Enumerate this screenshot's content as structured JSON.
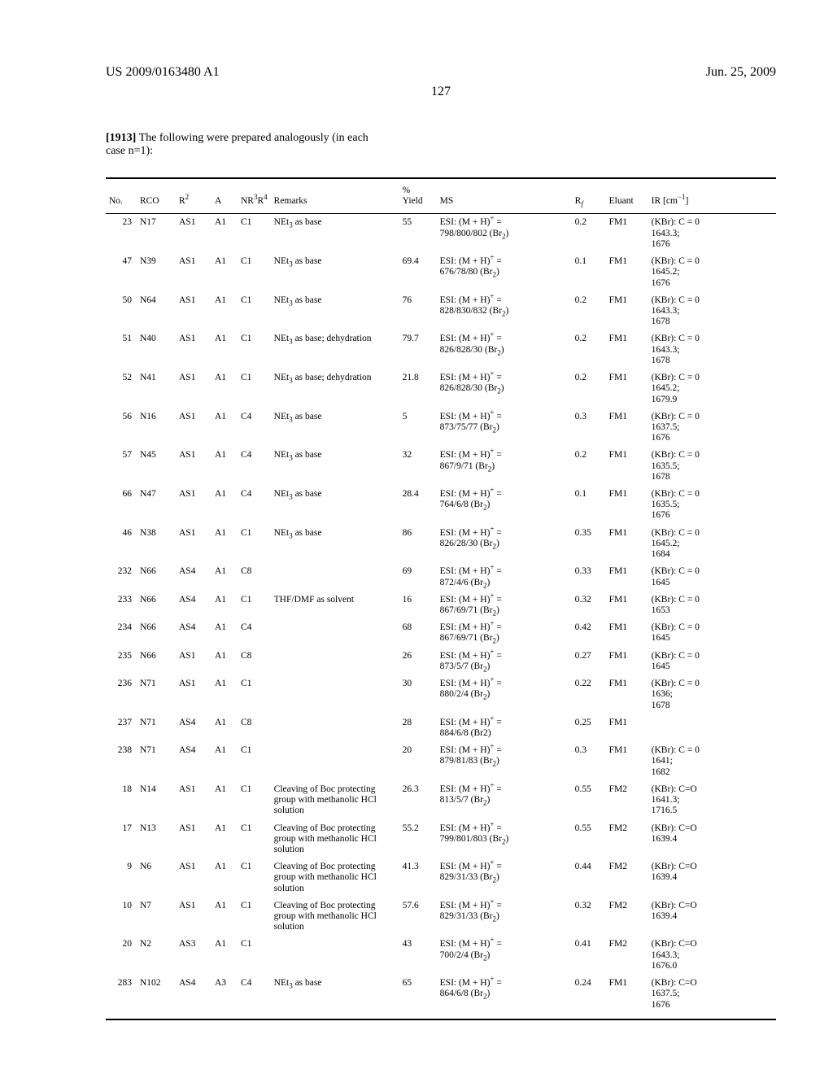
{
  "header": {
    "patent_no": "US 2009/0163480 A1",
    "date": "Jun. 25, 2009"
  },
  "page_number": "127",
  "intro": {
    "para_num": "[1913]",
    "text_a": "  The following were prepared analogously (in each",
    "text_b": "case n=1):"
  },
  "table": {
    "columns": {
      "no": "No.",
      "rco": "RCO",
      "r2": "R²",
      "a": "A",
      "nr": "NR³R⁴",
      "remarks": "Remarks",
      "yield": "% Yield",
      "ms": "MS",
      "rf": "R_f",
      "eluant": "Eluant",
      "ir": "IR [cm⁻¹]"
    },
    "rows": [
      {
        "no": "23",
        "rco": "N17",
        "r2": "AS1",
        "a": "A1",
        "nr": "C1",
        "remarks": "NEt₃ as base",
        "yield": "55",
        "ms": "ESI: (M + H)⁺ = 798/800/802 (Br₂)",
        "rf": "0.2",
        "eluant": "FM1",
        "ir": "(KBr): C = 0 1643.3; 1676"
      },
      {
        "no": "47",
        "rco": "N39",
        "r2": "AS1",
        "a": "A1",
        "nr": "C1",
        "remarks": "NEt₃ as base",
        "yield": "69.4",
        "ms": "ESI: (M + H)⁺ = 676/78/80 (Br₂)",
        "rf": "0.1",
        "eluant": "FM1",
        "ir": "(KBr): C = 0 1645.2; 1676"
      },
      {
        "no": "50",
        "rco": "N64",
        "r2": "AS1",
        "a": "A1",
        "nr": "C1",
        "remarks": "NEt₃ as base",
        "yield": "76",
        "ms": "ESI: (M + H)⁺ = 828/830/832 (Br₂)",
        "rf": "0.2",
        "eluant": "FM1",
        "ir": "(KBr): C = 0 1643.3; 1678"
      },
      {
        "no": "51",
        "rco": "N40",
        "r2": "AS1",
        "a": "A1",
        "nr": "C1",
        "remarks": "NEt₃ as base; dehydration",
        "yield": "79.7",
        "ms": "ESI: (M + H)⁺ = 826/828/30 (Br₂)",
        "rf": "0.2",
        "eluant": "FM1",
        "ir": "(KBr): C = 0 1643.3; 1678"
      },
      {
        "no": "52",
        "rco": "N41",
        "r2": "AS1",
        "a": "A1",
        "nr": "C1",
        "remarks": "NEt₃ as base; dehydration",
        "yield": "21.8",
        "ms": "ESI: (M + H)⁺ = 826/828/30 (Br₂)",
        "rf": "0.2",
        "eluant": "FM1",
        "ir": "(KBr): C = 0 1645.2; 1679.9"
      },
      {
        "no": "56",
        "rco": "N16",
        "r2": "AS1",
        "a": "A1",
        "nr": "C4",
        "remarks": "NEt₃ as base",
        "yield": "5",
        "ms": "ESI: (M + H)⁺ = 873/75/77 (Br₂)",
        "rf": "0.3",
        "eluant": "FM1",
        "ir": "(KBr): C = 0 1637.5; 1676"
      },
      {
        "no": "57",
        "rco": "N45",
        "r2": "AS1",
        "a": "A1",
        "nr": "C4",
        "remarks": "NEt₃ as base",
        "yield": "32",
        "ms": "ESI: (M + H)⁺ = 867/9/71 (Br₂)",
        "rf": "0.2",
        "eluant": "FM1",
        "ir": "(KBr): C = 0 1635.5; 1678"
      },
      {
        "no": "66",
        "rco": "N47",
        "r2": "AS1",
        "a": "A1",
        "nr": "C4",
        "remarks": "NEt₃ as base",
        "yield": "28.4",
        "ms": "ESI: (M + H)⁺ = 764/6/8 (Br₂)",
        "rf": "0.1",
        "eluant": "FM1",
        "ir": "(KBr): C = 0 1635.5; 1676"
      },
      {
        "no": "46",
        "rco": "N38",
        "r2": "AS1",
        "a": "A1",
        "nr": "C1",
        "remarks": "NEt₃ as base",
        "yield": "86",
        "ms": "ESI: (M + H)⁺ = 826/28/30 (Br₂)",
        "rf": "0.35",
        "eluant": "FM1",
        "ir": "(KBr): C = 0 1645.2; 1684"
      },
      {
        "no": "232",
        "rco": "N66",
        "r2": "AS4",
        "a": "A1",
        "nr": "C8",
        "remarks": "",
        "yield": "69",
        "ms": "ESI: (M + H)⁺ = 872/4/6 (Br₂)",
        "rf": "0.33",
        "eluant": "FM1",
        "ir": "(KBr): C = 0 1645"
      },
      {
        "no": "233",
        "rco": "N66",
        "r2": "AS4",
        "a": "A1",
        "nr": "C1",
        "remarks": "THF/DMF as solvent",
        "yield": "16",
        "ms": "ESI: (M + H)⁺ = 867/69/71 (Br₂)",
        "rf": "0.32",
        "eluant": "FM1",
        "ir": "(KBr): C = 0 1653"
      },
      {
        "no": "234",
        "rco": "N66",
        "r2": "AS4",
        "a": "A1",
        "nr": "C4",
        "remarks": "",
        "yield": "68",
        "ms": "ESI: (M + H)⁺ = 867/69/71 (Br₂)",
        "rf": "0.42",
        "eluant": "FM1",
        "ir": "(KBr): C = 0 1645"
      },
      {
        "no": "235",
        "rco": "N66",
        "r2": "AS1",
        "a": "A1",
        "nr": "C8",
        "remarks": "",
        "yield": "26",
        "ms": "ESI: (M + H)⁺ = 873/5/7 (Br₂)",
        "rf": "0.27",
        "eluant": "FM1",
        "ir": "(KBr): C = 0 1645"
      },
      {
        "no": "236",
        "rco": "N71",
        "r2": "AS1",
        "a": "A1",
        "nr": "C1",
        "remarks": "",
        "yield": "30",
        "ms": "ESI: (M + H)⁺ = 880/2/4 (Br₂)",
        "rf": "0.22",
        "eluant": "FM1",
        "ir": "(KBr): C = 0 1636; 1678"
      },
      {
        "no": "237",
        "rco": "N71",
        "r2": "AS4",
        "a": "A1",
        "nr": "C8",
        "remarks": "",
        "yield": "28",
        "ms": "ESI: (M + H)⁺ = 884/6/8 (Br2)",
        "rf": "0.25",
        "eluant": "FM1",
        "ir": ""
      },
      {
        "no": "238",
        "rco": "N71",
        "r2": "AS4",
        "a": "A1",
        "nr": "C1",
        "remarks": "",
        "yield": "20",
        "ms": "ESI: (M + H)⁺ = 879/81/83 (Br₂)",
        "rf": "0.3",
        "eluant": "FM1",
        "ir": "(KBr): C = 0 1641; 1682"
      },
      {
        "no": "18",
        "rco": "N14",
        "r2": "AS1",
        "a": "A1",
        "nr": "C1",
        "remarks": "Cleaving of Boc protecting group with methanolic HCl solution",
        "yield": "26.3",
        "ms": "ESI: (M + H)⁺ = 813/5/7 (Br₂)",
        "rf": "0.55",
        "eluant": "FM2",
        "ir": "(KBr): C=O 1641.3; 1716.5"
      },
      {
        "no": "17",
        "rco": "N13",
        "r2": "AS1",
        "a": "A1",
        "nr": "C1",
        "remarks": "Cleaving of Boc protecting group with methanolic HCl solution",
        "yield": "55.2",
        "ms": "ESI: (M + H)⁺ = 799/801/803 (Br₂)",
        "rf": "0.55",
        "eluant": "FM2",
        "ir": "(KBr): C=O 1639.4"
      },
      {
        "no": "9",
        "rco": "N6",
        "r2": "AS1",
        "a": "A1",
        "nr": "C1",
        "remarks": "Cleaving of Boc protecting group with methanolic HCl solution",
        "yield": "41.3",
        "ms": "ESI: (M + H)⁺ = 829/31/33 (Br₂)",
        "rf": "0.44",
        "eluant": "FM2",
        "ir": "(KBr): C=O 1639.4"
      },
      {
        "no": "10",
        "rco": "N7",
        "r2": "AS1",
        "a": "A1",
        "nr": "C1",
        "remarks": "Cleaving of Boc protecting group with methanolic HCl solution",
        "yield": "57.6",
        "ms": "ESI: (M + H)⁺ = 829/31/33 (Br₂)",
        "rf": "0.32",
        "eluant": "FM2",
        "ir": "(KBr): C=O 1639.4"
      },
      {
        "no": "20",
        "rco": "N2",
        "r2": "AS3",
        "a": "A1",
        "nr": "C1",
        "remarks": "",
        "yield": "43",
        "ms": "ESI: (M + H)⁺ = 700/2/4 (Br₂)",
        "rf": "0.41",
        "eluant": "FM2",
        "ir": "(KBr): C=O 1643.3; 1676.0"
      },
      {
        "no": "283",
        "rco": "N102",
        "r2": "AS4",
        "a": "A3",
        "nr": "C4",
        "remarks": "NEt₃ as base",
        "yield": "65",
        "ms": "ESI: (M + H)⁺ = 864/6/8 (Br₂)",
        "rf": "0.24",
        "eluant": "FM1",
        "ir": "(KBr): C=O 1637.5; 1676"
      }
    ]
  }
}
